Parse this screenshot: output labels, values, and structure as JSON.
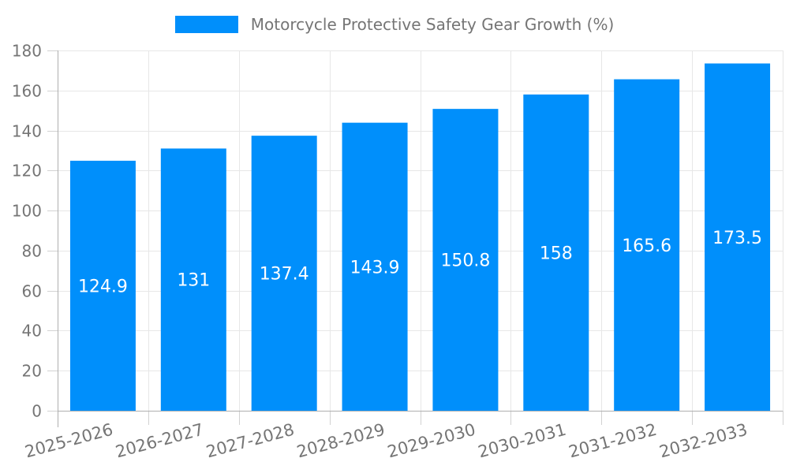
{
  "legend": {
    "label": "Motorcycle Protective Safety Gear Growth (%)"
  },
  "chart_data": {
    "type": "bar",
    "title": "Motorcycle Protective Safety Gear Growth (%)",
    "categories": [
      "2025-2026",
      "2026-2027",
      "2027-2028",
      "2028-2029",
      "2029-2030",
      "2030-2031",
      "2031-2032",
      "2032-2033"
    ],
    "values": [
      124.9,
      131,
      137.4,
      143.9,
      150.8,
      158,
      165.6,
      173.5
    ],
    "value_labels": [
      "124.9",
      "131",
      "137.4",
      "143.9",
      "150.8",
      "158",
      "165.6",
      "173.5"
    ],
    "xlabel": "",
    "ylabel": "",
    "ylim": [
      0,
      180
    ],
    "yticks": [
      0,
      20,
      40,
      60,
      80,
      100,
      120,
      140,
      160,
      180
    ],
    "grid": true,
    "legend_position": "top",
    "x_label_rotation_deg": -15,
    "colors": {
      "bar": "#008FFB",
      "value_label": "#FFFFFF",
      "axis_text": "#757575",
      "gridline": "#E7E7E7",
      "axis_line": "#AFAFAF",
      "tick": "#D2D2D2",
      "background": "#FFFFFF"
    }
  }
}
